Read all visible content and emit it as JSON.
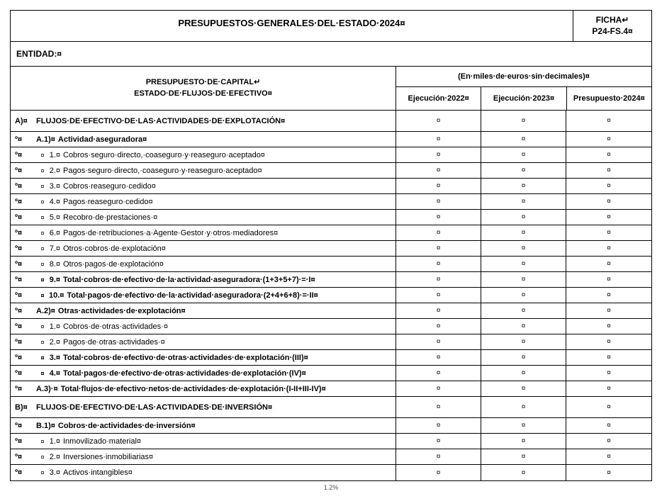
{
  "marker": "¤",
  "ret": "↵",
  "header": {
    "title": "PRESUPUESTOS·GENERALES·DEL·ESTADO·2024¤",
    "ficha_line1": "FICHA↵",
    "ficha_line2": "P24-FS.4¤"
  },
  "entidad_label": "ENTIDAD:¤",
  "table_header": {
    "left_line1": "PRESUPUESTO·DE·CAPITAL↵",
    "left_line2": "ESTADO·DE·FLUJOS·DE·EFECTIVO¤",
    "units": "(En·miles·de·euros·sin·decimales)¤",
    "col1": "Ejecución·2022¤",
    "col2": "Ejecución·2023¤",
    "col3": "Presupuesto·2024¤"
  },
  "rows": [
    {
      "code": "A)¤",
      "depth": 0,
      "num": "",
      "text": "FLUJOS·DE·EFECTIVO·DE·LAS·ACTIVIDADES·DE·EXPLOTACIÓN¤",
      "bold": true,
      "tall": true
    },
    {
      "code": "º¤",
      "depth": 0,
      "num": "A.1)¤",
      "text": "Actividad·aseguradora¤",
      "bold": true
    },
    {
      "code": "º¤",
      "depth": 1,
      "num": "1.¤",
      "text": "Cobros·seguro·directo,·coaseguro·y·reaseguro·aceptado¤",
      "bold": false
    },
    {
      "code": "º¤",
      "depth": 1,
      "num": "2.¤",
      "text": "Pagos·seguro·directo,·coaseguro·y·reaseguro·aceptado¤",
      "bold": false
    },
    {
      "code": "º¤",
      "depth": 1,
      "num": "3.¤",
      "text": "Cobros·reaseguro·cedido¤",
      "bold": false
    },
    {
      "code": "º¤",
      "depth": 1,
      "num": "4.¤",
      "text": "Pagos·reaseguro·cedido¤",
      "bold": false
    },
    {
      "code": "º¤",
      "depth": 1,
      "num": "5.¤",
      "text": "Recobro·de·prestaciones·¤",
      "bold": false
    },
    {
      "code": "º¤",
      "depth": 1,
      "num": "6.¤",
      "text": "Pagos·de·retribuciones·a·Agente·Gestor·y·otros·mediadores¤",
      "bold": false
    },
    {
      "code": "º¤",
      "depth": 1,
      "num": "7.¤",
      "text": "Otros·cobros·de·explotación¤",
      "bold": false
    },
    {
      "code": "º¤",
      "depth": 1,
      "num": "8.¤",
      "text": "Otros·pagos·de·explotación¤",
      "bold": false
    },
    {
      "code": "º¤",
      "depth": 1,
      "num": "9.¤",
      "text": "Total·cobros·de·efectivo·de·la·actividad·aseguradora·(1+3+5+7)·=·I¤",
      "bold": true
    },
    {
      "code": "º¤",
      "depth": 1,
      "num": "10.¤",
      "text": "Total·pagos·de·efectivo·de·la·actividad·aseguradora·(2+4+6+8)·=·II¤",
      "bold": true
    },
    {
      "code": "º¤",
      "depth": 0,
      "num": "A.2)¤",
      "text": "Otras·actividades·de·explotación¤",
      "bold": true
    },
    {
      "code": "º¤",
      "depth": 1,
      "num": "1.¤",
      "text": "Cobros·de·otras·actividades·¤",
      "bold": false
    },
    {
      "code": "º¤",
      "depth": 1,
      "num": "2.¤",
      "text": "Pagos·de·otras·actividades·¤",
      "bold": false
    },
    {
      "code": "º¤",
      "depth": 1,
      "num": "3.¤",
      "text": "Total·cobros·de·efectivo·de·otras·actividades·de·explotación·(III)¤",
      "bold": true
    },
    {
      "code": "º¤",
      "depth": 1,
      "num": "4.¤",
      "text": "Total·pagos·de·efectivo·de·otras·actividades·de·explotación·(IV)¤",
      "bold": true
    },
    {
      "code": "º¤",
      "depth": 0,
      "num": "A.3)·¤",
      "text": "Total·flujos·de·efectivo·netos·de·actividades·de·explotación·(I-II+III-IV)¤",
      "bold": true
    },
    {
      "code": "B)¤",
      "depth": 0,
      "num": "",
      "text": "FLUJOS·DE·EFECTIVO·DE·LAS·ACTIVIDADES·DE·INVERSIÓN¤",
      "bold": true,
      "tall": true
    },
    {
      "code": "º¤",
      "depth": 0,
      "num": "B.1)¤",
      "text": "Cobros·de·actividades·de·inversión¤",
      "bold": true
    },
    {
      "code": "º¤",
      "depth": 1,
      "num": "1.¤",
      "text": "Inmovilizado·material¤",
      "bold": false
    },
    {
      "code": "º¤",
      "depth": 1,
      "num": "2.¤",
      "text": "Inversiones·inmobiliarias¤",
      "bold": false
    },
    {
      "code": "º¤",
      "depth": 1,
      "num": "3.¤",
      "text": "Activos·intangibles¤",
      "bold": false
    }
  ],
  "footer": "1.2%"
}
